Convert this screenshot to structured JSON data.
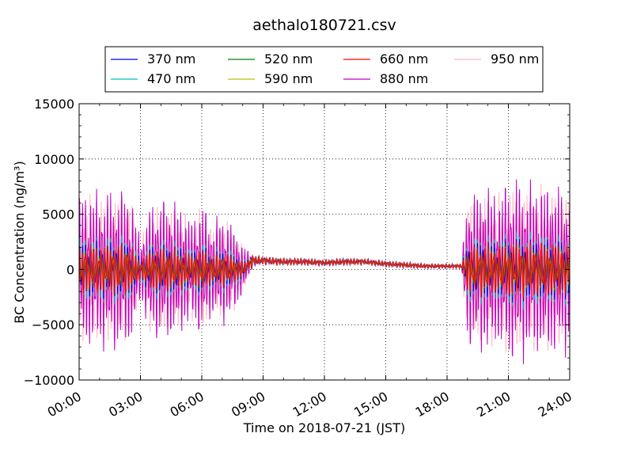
{
  "chart_data": {
    "type": "line",
    "title": "aethalo180721.csv",
    "xlabel": "Time on 2018-07-21 (JST)",
    "ylabel": "BC Concentration (ng/m³)",
    "x_unit": "hours since 00:00",
    "xlim": [
      0,
      24
    ],
    "ylim": [
      -10000,
      15000
    ],
    "x_ticks": [
      0,
      3,
      6,
      9,
      12,
      15,
      18,
      21,
      24
    ],
    "x_tick_labels": [
      "00:00",
      "03:00",
      "06:00",
      "09:00",
      "12:00",
      "15:00",
      "18:00",
      "21:00",
      "24:00"
    ],
    "y_ticks": [
      -10000,
      -5000,
      0,
      5000,
      10000,
      15000
    ],
    "y_tick_labels": [
      "−10000",
      "−5000",
      "0",
      "5000",
      "10000",
      "15000"
    ],
    "grid": true,
    "legend_position": "top-center",
    "envelope": {
      "x": [
        0.0,
        0.5,
        1.0,
        1.5,
        2.0,
        2.5,
        3.0,
        3.5,
        4.0,
        4.5,
        5.0,
        5.5,
        6.0,
        6.5,
        7.0,
        7.5,
        8.0,
        8.5,
        9.0,
        10.0,
        11.0,
        12.0,
        13.0,
        14.0,
        15.0,
        16.0,
        17.0,
        18.0,
        18.7,
        19.0,
        19.5,
        20.0,
        20.5,
        21.0,
        21.5,
        22.0,
        22.5,
        23.0,
        23.5,
        24.0
      ],
      "amplitude": [
        7500,
        7800,
        7600,
        7800,
        8000,
        7600,
        3000,
        6500,
        7000,
        6800,
        6200,
        5000,
        6800,
        4500,
        5500,
        4500,
        2500,
        500,
        350,
        300,
        300,
        250,
        300,
        250,
        250,
        250,
        200,
        200,
        200,
        7500,
        8000,
        8200,
        7500,
        9000,
        9000,
        8500,
        8500,
        8500,
        8200,
        8000
      ],
      "center": [
        0,
        0,
        0,
        0,
        0,
        0,
        0,
        0,
        0,
        0,
        0,
        0,
        0,
        0,
        0,
        0,
        0,
        800,
        800,
        700,
        700,
        600,
        700,
        700,
        500,
        400,
        300,
        300,
        300,
        0,
        0,
        0,
        0,
        0,
        0,
        0,
        0,
        0,
        0,
        0
      ]
    },
    "series": [
      {
        "name": "370 nm",
        "color": "#0000ff",
        "scale": 0.35,
        "phase": 0.0
      },
      {
        "name": "470 nm",
        "color": "#00bfbf",
        "scale": 0.42,
        "phase": 0.15
      },
      {
        "name": "520 nm",
        "color": "#008000",
        "scale": 0.3,
        "phase": 0.3
      },
      {
        "name": "590 nm",
        "color": "#bfbf00",
        "scale": 0.28,
        "phase": 0.45
      },
      {
        "name": "660 nm",
        "color": "#ff0000",
        "scale": 0.32,
        "phase": 0.6
      },
      {
        "name": "880 nm",
        "color": "#bf00bf",
        "scale": 1.0,
        "phase": 0.1
      },
      {
        "name": "950 nm",
        "color": "#ffb6c1",
        "scale": 0.92,
        "phase": 0.85
      }
    ]
  }
}
